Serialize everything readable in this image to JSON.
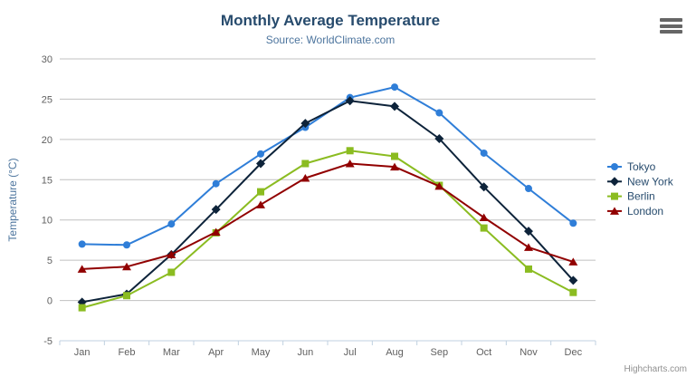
{
  "title": "Monthly Average Temperature",
  "subtitle": "Source: WorldClimate.com",
  "credits": "Highcharts.com",
  "export_menu": {
    "icon": "hamburger-icon"
  },
  "colors": {
    "title": "#274b6d",
    "subtitle": "#4d759e",
    "axis_labels": "#606060",
    "y_axis_title": "#4d759e",
    "legend_text": "#274b6d",
    "grid_line": "#c0c0c0",
    "axis_line": "#c0d0e0",
    "credits_text": "#909090"
  },
  "chart_data": {
    "type": "line",
    "title": "Monthly Average Temperature",
    "subtitle": "Source: WorldClimate.com",
    "categories": [
      "Jan",
      "Feb",
      "Mar",
      "Apr",
      "May",
      "Jun",
      "Jul",
      "Aug",
      "Sep",
      "Oct",
      "Nov",
      "Dec"
    ],
    "xlabel": "",
    "ylabel": "Temperature (°C)",
    "ylim": [
      -5,
      30
    ],
    "yticks": [
      -5,
      0,
      5,
      10,
      15,
      20,
      25,
      30
    ],
    "grid": true,
    "legend_position": "right",
    "series": [
      {
        "name": "Tokyo",
        "color": "#2f7ed8",
        "marker": "circle",
        "values": [
          7.0,
          6.9,
          9.5,
          14.5,
          18.2,
          21.5,
          25.2,
          26.5,
          23.3,
          18.3,
          13.9,
          9.6
        ]
      },
      {
        "name": "New York",
        "color": "#0d233a",
        "marker": "diamond",
        "values": [
          -0.2,
          0.8,
          5.7,
          11.3,
          17.0,
          22.0,
          24.8,
          24.1,
          20.1,
          14.1,
          8.6,
          2.5
        ]
      },
      {
        "name": "Berlin",
        "color": "#8bbc21",
        "marker": "square",
        "values": [
          -0.9,
          0.6,
          3.5,
          8.4,
          13.5,
          17.0,
          18.6,
          17.9,
          14.3,
          9.0,
          3.9,
          1.0
        ]
      },
      {
        "name": "London",
        "color": "#910000",
        "marker": "triangle",
        "values": [
          3.9,
          4.2,
          5.7,
          8.5,
          11.9,
          15.2,
          17.0,
          16.6,
          14.2,
          10.3,
          6.6,
          4.8
        ]
      }
    ]
  }
}
